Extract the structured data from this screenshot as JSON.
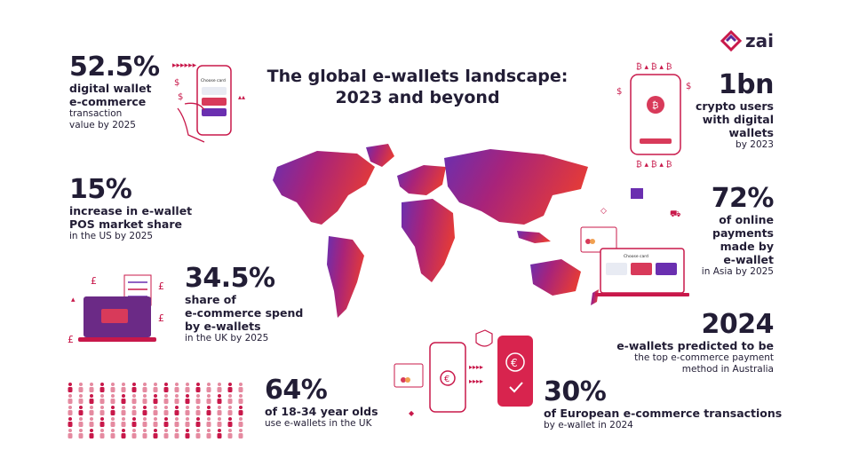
{
  "brand": {
    "name": "zai",
    "accent": "#c8184a",
    "purple": "#5a2a9a"
  },
  "title": {
    "line1": "The global e-wallets landscape:",
    "line2": "2023 and beyond"
  },
  "stats": [
    {
      "value": "52.5%",
      "sub": [
        "digital wallet",
        "e-commerce"
      ],
      "note": [
        "transaction",
        "value by 2025"
      ]
    },
    {
      "value": "15%",
      "sub": [
        "increase in e-wallet",
        "POS market share"
      ],
      "note": [
        "in the US by 2025"
      ]
    },
    {
      "value": "34.5%",
      "sub": [
        "share of",
        "e-commerce spend",
        "by e-wallets"
      ],
      "note": [
        "in the UK by 2025"
      ]
    },
    {
      "value": "64%",
      "sub": [
        "of 18-34 year olds",
        "use e-wallets in the UK"
      ],
      "note": []
    },
    {
      "value": "1bn",
      "sub": [
        "crypto users",
        "with digital",
        "wallets"
      ],
      "note": [
        "by 2023"
      ]
    },
    {
      "value": "72%",
      "sub": [
        "of online",
        "payments",
        "made by",
        "e-wallet"
      ],
      "note": [
        "in Asia by 2025"
      ]
    },
    {
      "value": "2024",
      "sub": [
        "e-wallets predicted to be"
      ],
      "note": [
        "the top e-commerce payment",
        "method in Australia"
      ]
    },
    {
      "value": "30%",
      "sub": [
        "of European e-commerce transactions"
      ],
      "note": [
        "by e-wallet in 2024"
      ]
    }
  ],
  "illustrations": {
    "phone_card_label": "Choose card",
    "laptop_card_label": "Choose card",
    "currency_symbols": [
      "$",
      "₿",
      "£",
      "€"
    ],
    "people_grid_rows": 5,
    "people_grid_cols": 17
  }
}
